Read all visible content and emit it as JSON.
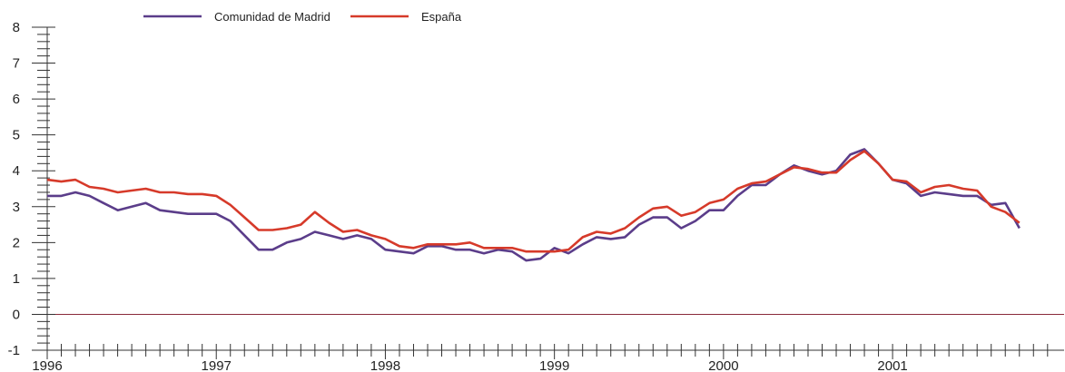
{
  "chart_data": {
    "type": "line",
    "title": "",
    "xlabel": "",
    "ylabel": "",
    "ylim": [
      -1,
      8
    ],
    "xlim": [
      1996.0,
      2001.95
    ],
    "y_ticks": [
      "-1",
      "0",
      "1",
      "2",
      "3",
      "4",
      "5",
      "6",
      "7",
      "8"
    ],
    "x_ticks": [
      {
        "value": 1996.0,
        "label": "1996"
      },
      {
        "value": 1997.0,
        "label": "1997"
      },
      {
        "value": 1998.0,
        "label": "1998"
      },
      {
        "value": 1999.0,
        "label": "1999"
      },
      {
        "value": 2000.0,
        "label": "2000"
      },
      {
        "value": 2001.0,
        "label": "2001"
      }
    ],
    "grid": false,
    "zero_line": true,
    "legend_position": "top-left",
    "x": [
      1996.0,
      1996.083,
      1996.167,
      1996.25,
      1996.333,
      1996.417,
      1996.5,
      1996.583,
      1996.667,
      1996.75,
      1996.833,
      1996.917,
      1997.0,
      1997.083,
      1997.167,
      1997.25,
      1997.333,
      1997.417,
      1997.5,
      1997.583,
      1997.667,
      1997.75,
      1997.833,
      1997.917,
      1998.0,
      1998.083,
      1998.167,
      1998.25,
      1998.333,
      1998.417,
      1998.5,
      1998.583,
      1998.667,
      1998.75,
      1998.833,
      1998.917,
      1999.0,
      1999.083,
      1999.167,
      1999.25,
      1999.333,
      1999.417,
      1999.5,
      1999.583,
      1999.667,
      1999.75,
      1999.833,
      1999.917,
      2000.0,
      2000.083,
      2000.167,
      2000.25,
      2000.333,
      2000.417,
      2000.5,
      2000.583,
      2000.667,
      2000.75,
      2000.833,
      2000.917,
      2001.0,
      2001.083,
      2001.167,
      2001.25,
      2001.333,
      2001.417,
      2001.5,
      2001.583,
      2001.667,
      2001.75
    ],
    "series": [
      {
        "name": "Comunidad de Madrid",
        "color": "#5b3d8a",
        "values": [
          3.3,
          3.3,
          3.4,
          3.3,
          3.1,
          2.9,
          3.0,
          3.1,
          2.9,
          2.85,
          2.8,
          2.8,
          2.8,
          2.6,
          2.2,
          1.8,
          1.8,
          2.0,
          2.1,
          2.3,
          2.2,
          2.1,
          2.2,
          2.1,
          1.8,
          1.75,
          1.7,
          1.9,
          1.9,
          1.8,
          1.8,
          1.7,
          1.8,
          1.75,
          1.5,
          1.55,
          1.85,
          1.7,
          1.95,
          2.15,
          2.1,
          2.15,
          2.5,
          2.7,
          2.7,
          2.4,
          2.6,
          2.9,
          2.9,
          3.3,
          3.6,
          3.6,
          3.9,
          4.15,
          4.0,
          3.9,
          4.0,
          4.45,
          4.6,
          4.2,
          3.75,
          3.65,
          3.3,
          3.4,
          3.35,
          3.3,
          3.3,
          3.05,
          3.1,
          2.4
        ]
      },
      {
        "name": "España",
        "color": "#d63a2a",
        "values": [
          3.75,
          3.7,
          3.75,
          3.55,
          3.5,
          3.4,
          3.45,
          3.5,
          3.4,
          3.4,
          3.35,
          3.35,
          3.3,
          3.05,
          2.7,
          2.35,
          2.35,
          2.4,
          2.5,
          2.85,
          2.55,
          2.3,
          2.35,
          2.2,
          2.1,
          1.9,
          1.85,
          1.95,
          1.95,
          1.95,
          2.0,
          1.85,
          1.85,
          1.85,
          1.75,
          1.75,
          1.75,
          1.8,
          2.15,
          2.3,
          2.25,
          2.4,
          2.7,
          2.95,
          3.0,
          2.75,
          2.85,
          3.1,
          3.2,
          3.5,
          3.65,
          3.7,
          3.9,
          4.1,
          4.05,
          3.95,
          3.95,
          4.3,
          4.55,
          4.2,
          3.75,
          3.7,
          3.4,
          3.55,
          3.6,
          3.5,
          3.45,
          3.0,
          2.85,
          2.55
        ]
      }
    ]
  }
}
